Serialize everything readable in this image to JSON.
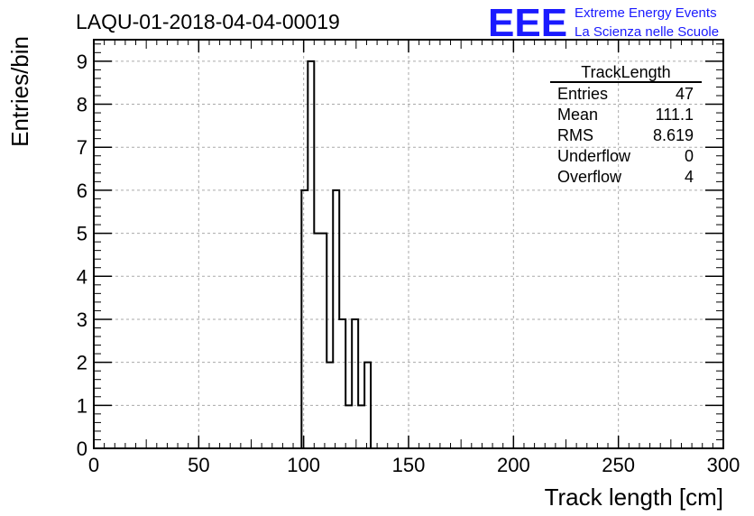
{
  "chart_data": {
    "type": "bar",
    "title": "LAQU-01-2018-04-04-00019",
    "xlabel": "Track length [cm]",
    "ylabel": "Entries/bin",
    "xlim": [
      0,
      300
    ],
    "ylim": [
      0,
      9.5
    ],
    "x_ticks": [
      "0",
      "50",
      "100",
      "150",
      "200",
      "250",
      "300"
    ],
    "y_ticks": [
      "0",
      "1",
      "2",
      "3",
      "4",
      "5",
      "6",
      "7",
      "8",
      "9"
    ],
    "grid": true,
    "bin_width": 3,
    "bins": [
      {
        "x0": 99,
        "count": 6
      },
      {
        "x0": 102,
        "count": 9
      },
      {
        "x0": 105,
        "count": 5
      },
      {
        "x0": 108,
        "count": 5
      },
      {
        "x0": 111,
        "count": 2
      },
      {
        "x0": 114,
        "count": 6
      },
      {
        "x0": 117,
        "count": 3
      },
      {
        "x0": 120,
        "count": 1
      },
      {
        "x0": 123,
        "count": 3
      },
      {
        "x0": 126,
        "count": 1
      },
      {
        "x0": 129,
        "count": 2
      }
    ],
    "stats_box": {
      "title": "TrackLength",
      "rows": [
        {
          "label": "Entries",
          "value": "47"
        },
        {
          "label": "Mean",
          "value": "111.1"
        },
        {
          "label": "RMS",
          "value": "8.619"
        },
        {
          "label": "Underflow",
          "value": "0"
        },
        {
          "label": "Overflow",
          "value": "4"
        }
      ]
    }
  },
  "logo": {
    "mark": "EEE",
    "line1": "Extreme Energy Events",
    "line2": "La Scienza nelle Scuole",
    "color": "#1a1aff"
  },
  "colors": {
    "line": "#000000",
    "grid": "#aaaaaa"
  }
}
